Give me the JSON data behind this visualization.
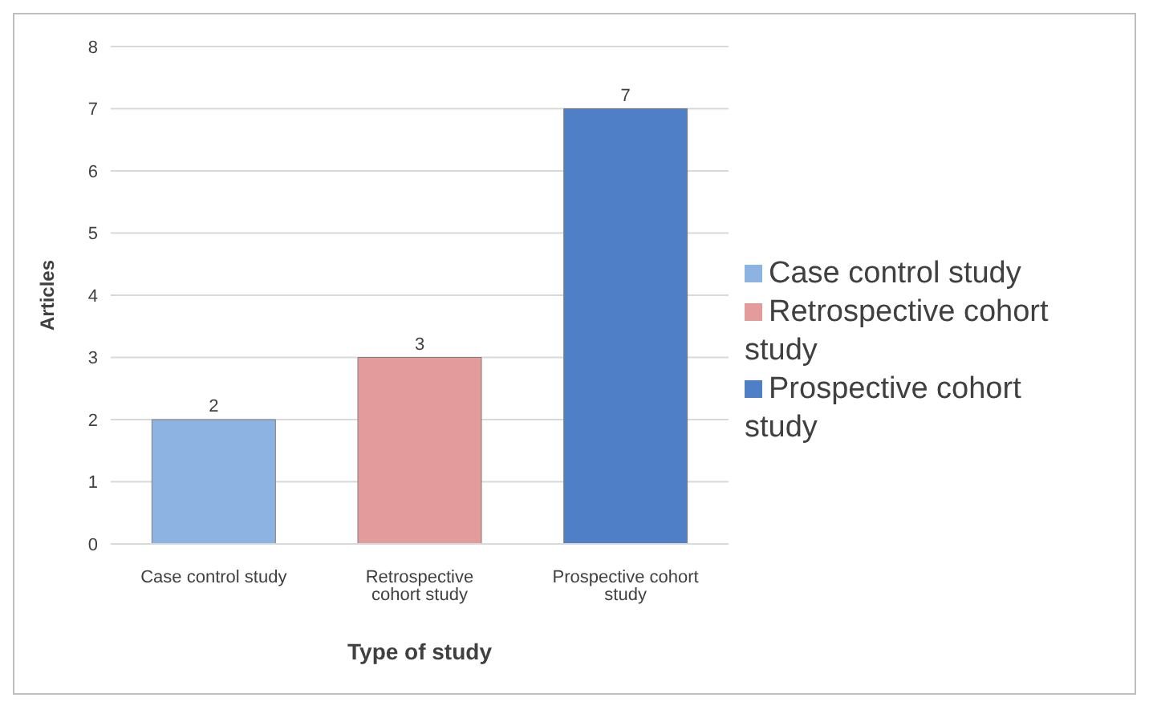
{
  "chart_data": {
    "type": "bar",
    "xlabel": "Type of study",
    "ylabel": "Articles",
    "categories": [
      "Case control study",
      "Retrospective cohort study",
      "Prospective cohort study"
    ],
    "series": [
      {
        "name": "Case control study",
        "color": "#8db3e2",
        "values": [
          2,
          null,
          null
        ]
      },
      {
        "name": "Retrospective cohort study",
        "color": "#e39c9b",
        "values": [
          null,
          3,
          null
        ]
      },
      {
        "name": "Prospective cohort study",
        "color": "#4f7fc6",
        "values": [
          null,
          null,
          7
        ]
      }
    ],
    "stacked": true,
    "ylim": [
      0,
      8
    ],
    "yticks": [
      0,
      1,
      2,
      3,
      4,
      5,
      6,
      7,
      8
    ],
    "grid": "y",
    "data_labels": true,
    "legend": "right"
  }
}
